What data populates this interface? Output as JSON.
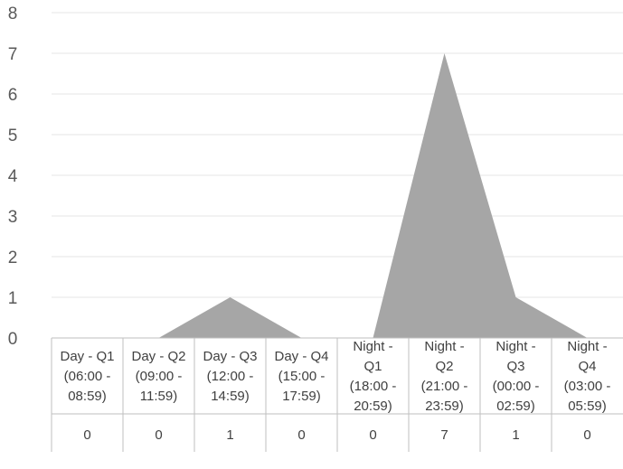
{
  "chart_data": {
    "type": "area",
    "title": "",
    "xlabel": "",
    "ylabel": "",
    "ylim": [
      0,
      8
    ],
    "yticks": [
      0,
      1,
      2,
      3,
      4,
      5,
      6,
      7,
      8
    ],
    "grid": true,
    "legend": "none",
    "categories": [
      [
        "Day - Q1",
        "(06:00 -",
        "08:59)"
      ],
      [
        "Day - Q2",
        "(09:00 -",
        "11:59)"
      ],
      [
        "Day - Q3",
        "(12:00 -",
        "14:59)"
      ],
      [
        "Day - Q4",
        "(15:00 -",
        "17:59)"
      ],
      [
        "Night -",
        "Q1",
        "(18:00 -",
        "20:59)"
      ],
      [
        "Night -",
        "Q2",
        "(21:00 -",
        "23:59)"
      ],
      [
        "Night -",
        "Q3",
        "(00:00 -",
        "02:59)"
      ],
      [
        "Night -",
        "Q4",
        "(03:00 -",
        "05:59)"
      ]
    ],
    "series": [
      {
        "values": [
          0,
          0,
          1,
          0,
          0,
          7,
          1,
          0
        ]
      }
    ],
    "data_table": true,
    "colors": {
      "area": "#a6a6a6",
      "grid": "#e6e6e6",
      "table_border": "#bfbfbf",
      "text": "#404040",
      "tick": "#595959"
    }
  }
}
